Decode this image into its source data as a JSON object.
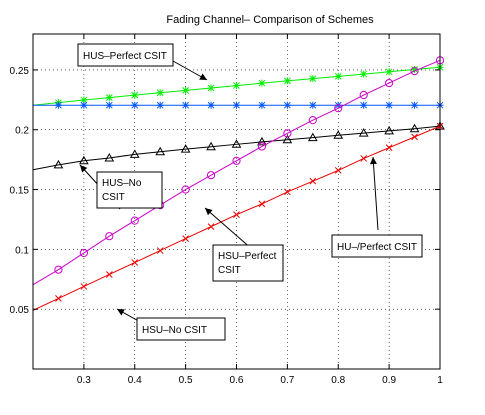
{
  "chart_data": {
    "type": "line",
    "title": "Fading Channel– Comparison of Schemes",
    "xlabel": "",
    "ylabel": "",
    "xlim": [
      0.2,
      1.0
    ],
    "ylim": [
      0.0,
      0.28
    ],
    "xticks": [
      0.3,
      0.4,
      0.5,
      0.6,
      0.7,
      0.8,
      0.9,
      1
    ],
    "yticks": [
      0.05,
      0.1,
      0.15,
      0.2,
      0.25
    ],
    "xtick_labels": [
      "0.3",
      "0.4",
      "0.5",
      "0.6",
      "0.7",
      "0.8",
      "0.9",
      "1"
    ],
    "ytick_labels": [
      "0.05",
      "0.1",
      "0.15",
      "0.2",
      "0.25"
    ],
    "grid": "dotted",
    "series": [
      {
        "name": "HUS–Perfect CSIT",
        "color": "#00ee00",
        "marker": "star",
        "x": [
          0.2,
          0.25,
          0.3,
          0.35,
          0.4,
          0.45,
          0.5,
          0.55,
          0.6,
          0.65,
          0.7,
          0.75,
          0.8,
          0.85,
          0.9,
          0.95,
          1.0
        ],
        "y": [
          0.2205,
          0.2226,
          0.2248,
          0.2268,
          0.2289,
          0.2309,
          0.2329,
          0.2349,
          0.2369,
          0.2389,
          0.2408,
          0.2427,
          0.2446,
          0.2465,
          0.2484,
          0.2503,
          0.2522
        ]
      },
      {
        "name": "HU–/Perfect CSIT",
        "color": "#0055ff",
        "marker": "star",
        "x": [
          0.2,
          0.25,
          0.3,
          0.35,
          0.4,
          0.45,
          0.5,
          0.55,
          0.6,
          0.65,
          0.7,
          0.75,
          0.8,
          0.85,
          0.9,
          0.95,
          1.0
        ],
        "y": [
          0.2205,
          0.2205,
          0.2205,
          0.2205,
          0.2205,
          0.2205,
          0.2205,
          0.2205,
          0.2205,
          0.2205,
          0.2205,
          0.2205,
          0.2205,
          0.2205,
          0.2205,
          0.2205,
          0.2205
        ]
      },
      {
        "name": "HUS–No CSIT",
        "color": "#000000",
        "marker": "triangle",
        "x": [
          0.2,
          0.25,
          0.3,
          0.35,
          0.4,
          0.45,
          0.5,
          0.55,
          0.6,
          0.65,
          0.7,
          0.75,
          0.8,
          0.85,
          0.9,
          0.95,
          1.0
        ],
        "y": [
          0.1665,
          0.1706,
          0.1741,
          0.1764,
          0.1794,
          0.1816,
          0.1838,
          0.1858,
          0.1878,
          0.1898,
          0.1916,
          0.1934,
          0.1954,
          0.1972,
          0.199,
          0.2008,
          0.203
        ]
      },
      {
        "name": "HSU–Perfect CSIT",
        "color": "#cc00cc",
        "marker": "circle",
        "x": [
          0.2,
          0.25,
          0.3,
          0.35,
          0.4,
          0.45,
          0.5,
          0.55,
          0.6,
          0.65,
          0.7,
          0.75,
          0.8,
          0.85,
          0.9,
          0.95,
          1.0
        ],
        "y": [
          0.0705,
          0.083,
          0.097,
          0.111,
          0.124,
          0.137,
          0.15,
          0.162,
          0.174,
          0.186,
          0.197,
          0.208,
          0.218,
          0.229,
          0.239,
          0.249,
          0.258
        ]
      },
      {
        "name": "HSU–No CSIT",
        "color": "#ee0000",
        "marker": "x",
        "x": [
          0.2,
          0.25,
          0.3,
          0.35,
          0.4,
          0.45,
          0.5,
          0.55,
          0.6,
          0.65,
          0.7,
          0.75,
          0.8,
          0.85,
          0.9,
          0.95,
          1.0
        ],
        "y": [
          0.049,
          0.059,
          0.069,
          0.079,
          0.089,
          0.099,
          0.109,
          0.119,
          0.129,
          0.138,
          0.148,
          0.157,
          0.166,
          0.176,
          0.185,
          0.194,
          0.203
        ]
      }
    ],
    "annotations": [
      {
        "text": "HUS–Perfect CSIT",
        "series": "HUS–Perfect CSIT"
      },
      {
        "text": "HUS–No CSIT",
        "series": "HUS–No CSIT"
      },
      {
        "text": "HSU–Perfect CSIT",
        "series": "HSU–Perfect CSIT"
      },
      {
        "text": "HU–/Perfect CSIT",
        "series": "HU–/Perfect CSIT"
      },
      {
        "text": "HSU–No CSIT",
        "series": "HSU–No CSIT"
      }
    ]
  }
}
